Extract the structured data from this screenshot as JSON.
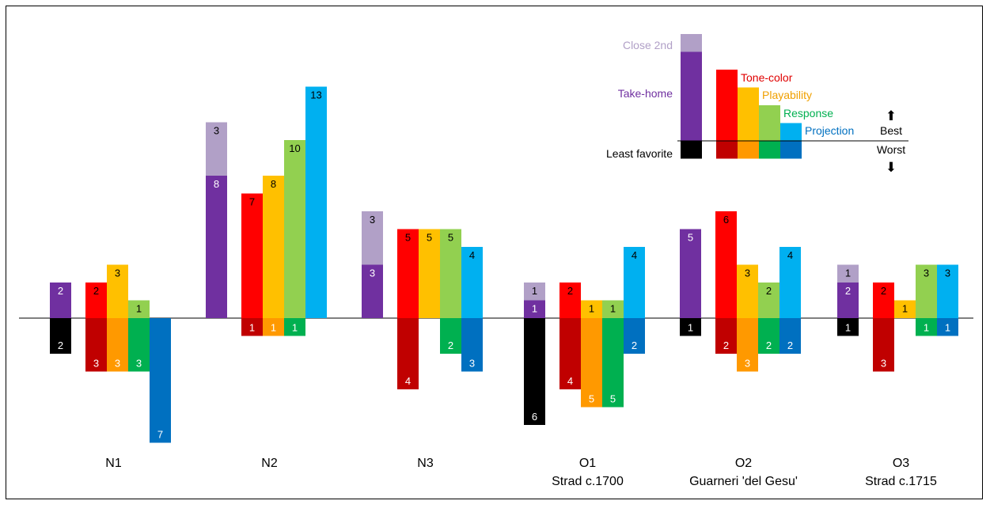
{
  "chart_data": {
    "type": "bar",
    "baseline": "zero line separates best (above) from worst (below) counts",
    "colors": {
      "close2nd": "#b1a0c7",
      "takehome": "#7030a0",
      "least": "#000000",
      "tone_best": "#ff0000",
      "tone_worst": "#c00000",
      "play_best": "#ffc000",
      "play_worst": "#ff9900",
      "resp_best": "#92d050",
      "resp_worst": "#00b050",
      "proj_best": "#00b0f0",
      "proj_worst": "#0070c0"
    },
    "instruments": [
      {
        "label": "N1",
        "sublabel": "",
        "close2nd": 0,
        "takehome": 2,
        "least": 2,
        "tone": [
          2,
          3
        ],
        "play": [
          3,
          3
        ],
        "resp": [
          1,
          3
        ],
        "proj": [
          0,
          7
        ]
      },
      {
        "label": "N2",
        "sublabel": "",
        "close2nd": 3,
        "takehome": 8,
        "least": 0,
        "tone": [
          7,
          1
        ],
        "play": [
          8,
          1
        ],
        "resp": [
          10,
          1
        ],
        "proj": [
          13,
          0
        ]
      },
      {
        "label": "N3",
        "sublabel": "",
        "close2nd": 3,
        "takehome": 3,
        "least": 0,
        "tone": [
          5,
          4
        ],
        "play": [
          5,
          0
        ],
        "resp": [
          5,
          2
        ],
        "proj": [
          4,
          3
        ]
      },
      {
        "label": "O1",
        "sublabel": "Strad c.1700",
        "close2nd": 1,
        "takehome": 1,
        "least": 6,
        "tone": [
          2,
          4
        ],
        "play": [
          1,
          5
        ],
        "resp": [
          1,
          5
        ],
        "proj": [
          4,
          2
        ]
      },
      {
        "label": "O2",
        "sublabel": "Guarneri 'del Gesu'",
        "close2nd": 0,
        "takehome": 5,
        "least": 1,
        "tone": [
          6,
          2
        ],
        "play": [
          3,
          3
        ],
        "resp": [
          2,
          2
        ],
        "proj": [
          4,
          2
        ]
      },
      {
        "label": "O3",
        "sublabel": "Strad c.1715",
        "close2nd": 1,
        "takehome": 2,
        "least": 1,
        "tone": [
          2,
          3
        ],
        "play": [
          1,
          0
        ],
        "resp": [
          3,
          1
        ],
        "proj": [
          3,
          1
        ]
      }
    ],
    "legend": {
      "close2nd": "Close 2nd",
      "takehome": "Take-home",
      "least": "Least favorite",
      "tone": "Tone-color",
      "play": "Playability",
      "resp": "Response",
      "proj": "Projection",
      "best": "Best",
      "worst": "Worst",
      "best_arrow": "⬆",
      "worst_arrow": "⬇"
    }
  }
}
